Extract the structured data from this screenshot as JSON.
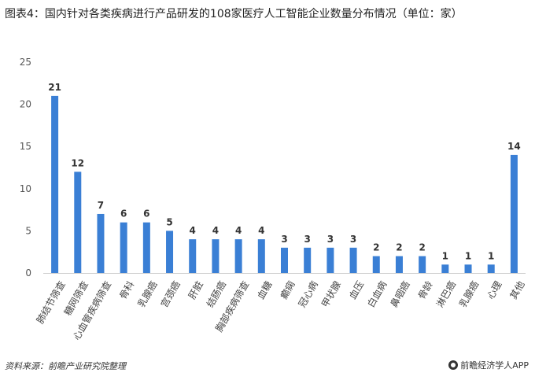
{
  "title": "图表4：国内针对各类疾病进行产品研发的108家医疗人工智能企业数量分布情况（单位：家）",
  "source": "资料来源：前瞻产业研究院整理",
  "brand": "前瞻经济学人APP",
  "colors": {
    "bar": "#3a7fd5",
    "axis": "#d0d0d0",
    "text": "#555555"
  },
  "chart_data": {
    "type": "bar",
    "categories": [
      "肺结节筛查",
      "糖网筛查",
      "心血管疾病筛查",
      "骨科",
      "乳腺癌",
      "宫颈癌",
      "肝脏",
      "结肠癌",
      "胸部疾病筛查",
      "血糖",
      "癫痫",
      "冠心病",
      "甲状腺",
      "血压",
      "白血病",
      "鼻咽癌",
      "骨龄",
      "淋巴癌",
      "乳腺癌",
      "心理",
      "其他"
    ],
    "values": [
      21,
      12,
      7,
      6,
      6,
      5,
      4,
      4,
      4,
      4,
      3,
      3,
      3,
      3,
      2,
      2,
      2,
      1,
      1,
      1,
      14
    ],
    "yticks": [
      0,
      5,
      10,
      15,
      20,
      25
    ],
    "ylim": [
      0,
      25
    ],
    "grid": false,
    "legend": "none"
  }
}
